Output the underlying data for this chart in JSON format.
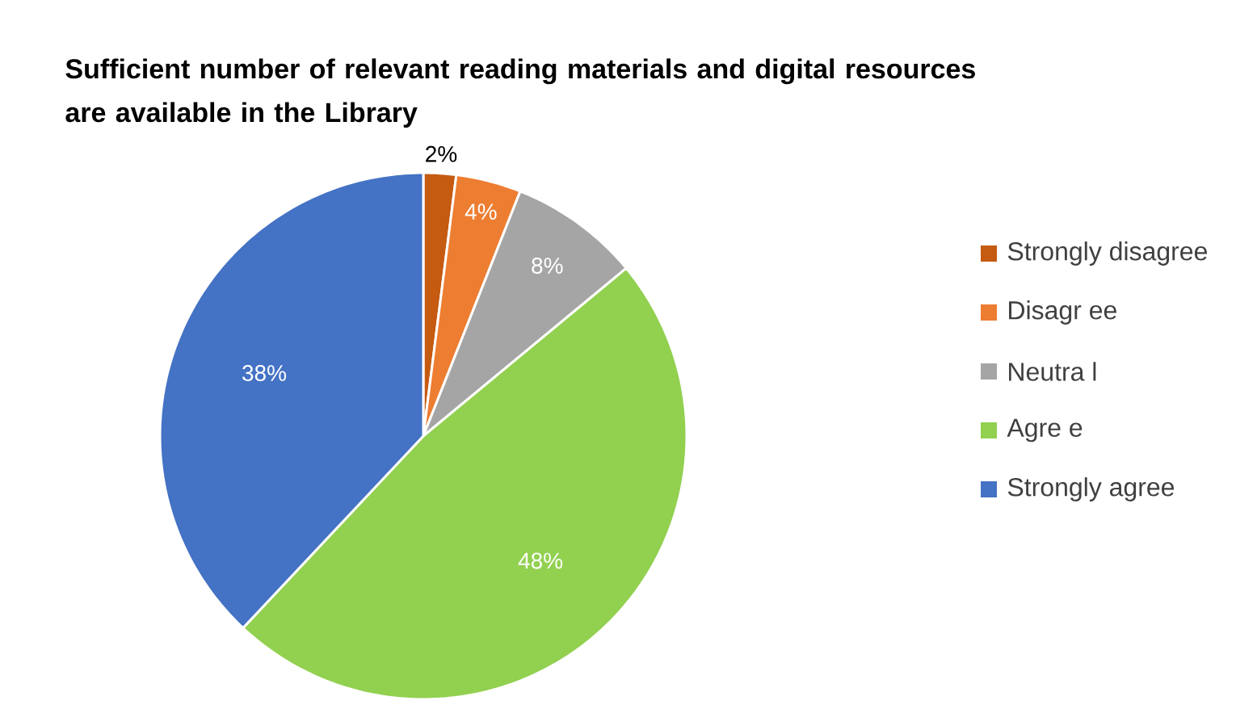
{
  "chart_data": {
    "type": "pie",
    "title": "Sufficient number of relevant reading materials and digital resources are available in the Library",
    "categories": [
      "Strongly disagree",
      "Disagr ee",
      "Neutra l",
      "Agre e",
      "Strongly agree"
    ],
    "values": [
      2,
      4,
      8,
      48,
      38
    ],
    "colors": [
      "#c55a11",
      "#ed7d31",
      "#a5a5a5",
      "#92d050",
      "#4472c4"
    ],
    "value_labels": [
      "2%",
      "4%",
      "8%",
      "48%",
      "38%"
    ],
    "legend": "right"
  }
}
